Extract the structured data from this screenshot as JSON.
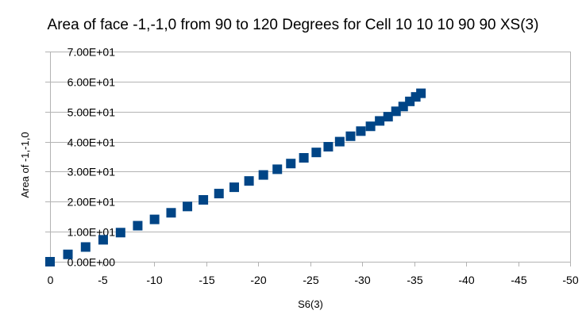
{
  "chart_data": {
    "type": "scatter",
    "title": "Area of face -1,-1,0 from 90 to 120 Degrees for Cell 10 10 10 90 90 XS(3)",
    "xlabel": "S6(3)",
    "ylabel": "Area of -1,-1,0",
    "xlim": [
      0,
      -50
    ],
    "ylim": [
      0,
      70
    ],
    "x_ticks": [
      0,
      -5,
      -10,
      -15,
      -20,
      -25,
      -30,
      -35,
      -40,
      -45,
      -50
    ],
    "x_tick_labels": [
      "0",
      "-5",
      "-10",
      "-15",
      "-20",
      "-25",
      "-30",
      "-35",
      "-40",
      "-45",
      "-50"
    ],
    "y_ticks": [
      0,
      10,
      20,
      30,
      40,
      50,
      60,
      70
    ],
    "y_tick_labels": [
      "0.00E+00",
      "1.00E+01",
      "2.00E+01",
      "3.00E+01",
      "4.00E+01",
      "5.00E+01",
      "6.00E+01",
      "7.00E+01"
    ],
    "grid": "horizontal",
    "legend": "none",
    "marker": "square",
    "series": [
      {
        "color": "#004586",
        "x": [
          0,
          -1.72,
          -3.42,
          -5.11,
          -6.78,
          -8.43,
          -10.05,
          -11.64,
          -13.21,
          -14.74,
          -16.24,
          -17.71,
          -19.13,
          -20.51,
          -21.85,
          -23.15,
          -24.4,
          -25.6,
          -26.75,
          -27.85,
          -28.89,
          -29.88,
          -30.81,
          -31.69,
          -32.5,
          -33.26,
          -33.95,
          -34.59,
          -35.16,
          -35.66
        ],
        "y": [
          0.0,
          2.45,
          4.9,
          7.3,
          9.7,
          12.0,
          14.1,
          16.3,
          18.4,
          20.6,
          22.7,
          24.8,
          26.9,
          28.9,
          30.8,
          32.7,
          34.6,
          36.4,
          38.3,
          40.0,
          41.8,
          43.5,
          45.1,
          46.9,
          48.3,
          50.1,
          51.7,
          53.4,
          54.9,
          56.1
        ]
      }
    ]
  }
}
